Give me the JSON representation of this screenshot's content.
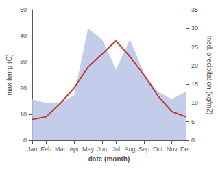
{
  "chart_data": {
    "type": "line",
    "xlabel": "date (month)",
    "ylabel": "max temp (C)",
    "y2label": "med. precipitation (kg/m2)",
    "categories": [
      "Jan",
      "Feb",
      "Mar",
      "Apr",
      "May",
      "Jun",
      "Jul",
      "Aug",
      "Sep",
      "Oct",
      "Nov",
      "Dec"
    ],
    "series": [
      {
        "type": "area",
        "axis": "y2",
        "color": "#b8c4e8",
        "values": [
          11,
          10,
          10,
          12,
          30,
          27,
          19,
          27,
          18,
          13,
          11,
          13
        ]
      },
      {
        "type": "line",
        "color": "#c0392b",
        "values": [
          8,
          9,
          14,
          20,
          28,
          33,
          38,
          32,
          25,
          17,
          11,
          9
        ]
      }
    ],
    "ylim": [
      0,
      50
    ],
    "yticks": [
      0,
      10,
      20,
      30,
      40,
      50
    ],
    "y2lim": [
      0,
      35
    ],
    "y2ticks": [
      0,
      5,
      10,
      15,
      20,
      25,
      30,
      35
    ],
    "grid": false
  }
}
